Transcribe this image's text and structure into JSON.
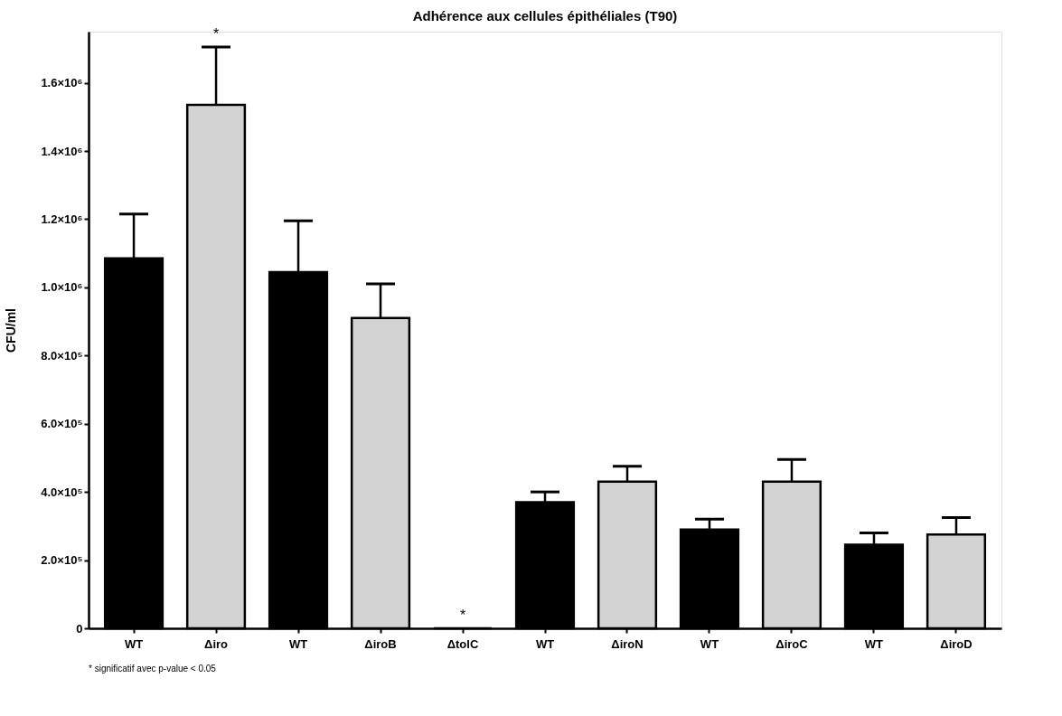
{
  "chart_data": {
    "type": "bar",
    "title": "Adhérence aux cellules épithéliales  (T90)",
    "ylabel": "CFU/ml",
    "categories": [
      "WT",
      "Δiro",
      "WT",
      "ΔiroB",
      "ΔtolC",
      "WT",
      "ΔiroN",
      "WT",
      "ΔiroC",
      "WT",
      "ΔiroD"
    ],
    "values": [
      1085000,
      1535000,
      1045000,
      910000,
      0,
      370000,
      430000,
      290000,
      430000,
      245000,
      275000
    ],
    "colors": [
      "#000000",
      "#d3d3d3",
      "#000000",
      "#d3d3d3",
      "#000000",
      "#000000",
      "#d3d3d3",
      "#000000",
      "#d3d3d3",
      "#000000",
      "#d3d3d3"
    ],
    "errors": [
      [
        1085000,
        1215000
      ],
      [
        1535000,
        1705000
      ],
      [
        1045000,
        1195000
      ],
      [
        910000,
        1010000
      ],
      null,
      [
        370000,
        400000
      ],
      [
        430000,
        475000
      ],
      [
        290000,
        320000
      ],
      [
        430000,
        495000
      ],
      [
        245000,
        280000
      ],
      [
        275000,
        325000
      ]
    ],
    "ylim": [
      0,
      1750000
    ],
    "yticks": [
      0,
      {
        "value": 200000,
        "label": "2.0×10⁵"
      },
      {
        "value": 400000,
        "label": "4.0×10⁵"
      },
      {
        "value": 600000,
        "label": "6.0×10⁵"
      },
      {
        "value": 800000,
        "label": "8.0×10⁵"
      },
      {
        "value": 1000000,
        "label": "1.0×10⁶"
      },
      {
        "value": 1200000,
        "label": "1.2×10⁶"
      },
      {
        "value": 1400000,
        "label": "1.4×10⁶"
      },
      {
        "value": 1600000,
        "label": "1.6×10⁶"
      }
    ],
    "grid": false,
    "annotations": [
      {
        "text": "*",
        "x": "Δiro",
        "y": 1705000
      },
      {
        "text": "*",
        "x": "ΔtolC",
        "y": 0
      },
      "* significatif avec p-value < 0.05"
    ]
  }
}
